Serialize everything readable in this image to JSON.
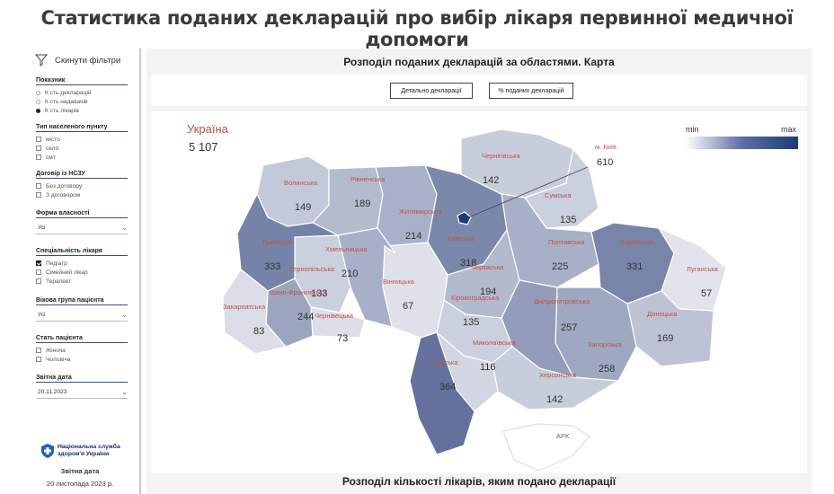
{
  "page_title": "Статистика поданих декларацій про вибір лікаря первинної медичної допомоги",
  "sidebar": {
    "reset_label": "Скинути фільтри",
    "indicator": {
      "title": "Показник",
      "options": [
        "К сть декларацій",
        "К сть надавачів",
        "К сть лікарів"
      ],
      "selected": 2
    },
    "settlement": {
      "title": "Тип населеного пункту",
      "options": [
        "місто",
        "село",
        "смт"
      ]
    },
    "contract": {
      "title": "Договір із НСЗУ",
      "options": [
        "Без договору",
        "З договором"
      ]
    },
    "ownership": {
      "title": "Форма власності",
      "value": "Усі"
    },
    "specialty": {
      "title": "Спеціальність лікаря",
      "options": [
        "Педіатр",
        "Сімейний лікар",
        "Терапевт"
      ],
      "checked": [
        0
      ]
    },
    "age_group": {
      "title": "Вікова група пацієнта",
      "value": "Усі"
    },
    "sex": {
      "title": "Стать пацієнта",
      "options": [
        "Жіноча",
        "Чоловіча"
      ]
    },
    "report_date": {
      "title": "Звітна дата",
      "value": "20.11.2023"
    },
    "nszu_name": "Національна служба здоров'я України",
    "report_date_label": "Звітна дата",
    "report_date_text": "20 листопада 2023 р."
  },
  "main": {
    "map_title": "Розподіл поданих декларацій за областями. Карта",
    "btn_detail": "Детально декларації",
    "btn_percent": "% поданих декларацій",
    "bottom_title": "Розподіл кількості лікарів, яким подано декларації",
    "country_label": "Україна",
    "country_value": "5 107",
    "legend_min": "min",
    "legend_max": "max",
    "colors": {
      "low": "#ffffff",
      "high": "#1f3a77",
      "label": "#c0504d"
    },
    "regions": [
      {
        "name": "Волинська",
        "value": "149"
      },
      {
        "name": "Рівненська",
        "value": "189"
      },
      {
        "name": "Житомирська",
        "value": "214"
      },
      {
        "name": "Київська",
        "value": "318"
      },
      {
        "name": "м. Київ",
        "value": "610"
      },
      {
        "name": "Чернігівська",
        "value": "142"
      },
      {
        "name": "Сумська",
        "value": "135"
      },
      {
        "name": "Полтавська",
        "value": "225"
      },
      {
        "name": "Харківська",
        "value": "331"
      },
      {
        "name": "Луганська",
        "value": "57"
      },
      {
        "name": "Донецька",
        "value": "169"
      },
      {
        "name": "Запорізька",
        "value": "258"
      },
      {
        "name": "Дніпропетровська",
        "value": "257"
      },
      {
        "name": "Херсонська",
        "value": "142"
      },
      {
        "name": "Миколаївська",
        "value": "116"
      },
      {
        "name": "Одеська",
        "value": "364"
      },
      {
        "name": "Кіровоградська",
        "value": "135"
      },
      {
        "name": "Черкаська",
        "value": "194"
      },
      {
        "name": "Вінницька",
        "value": "67"
      },
      {
        "name": "Хмельницька",
        "value": "210"
      },
      {
        "name": "Тернопільська",
        "value": "133"
      },
      {
        "name": "Львівська",
        "value": "333"
      },
      {
        "name": "Закарпатська",
        "value": "83"
      },
      {
        "name": "Івано-Франківська",
        "value": "244"
      },
      {
        "name": "Чернівецька",
        "value": "73"
      },
      {
        "name": "АРК",
        "value": ""
      }
    ]
  }
}
